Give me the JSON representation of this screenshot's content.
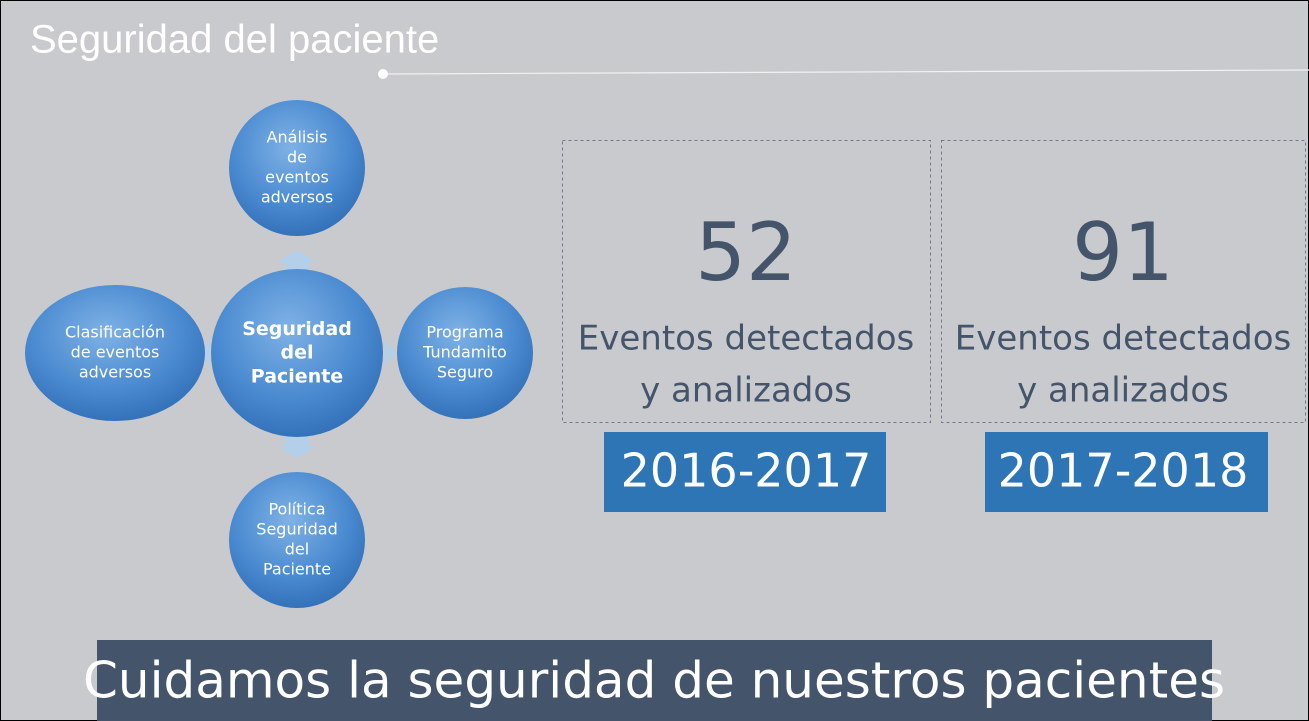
{
  "title": "Seguridad del paciente",
  "diagram": {
    "center": {
      "lines": [
        "Seguridad",
        "del",
        "Paciente"
      ]
    },
    "nodes": [
      {
        "lines": [
          "Análisis",
          "de",
          "eventos",
          "adversos"
        ]
      },
      {
        "lines": [
          "Programa",
          "Tundamito",
          "Seguro"
        ]
      },
      {
        "lines": [
          "Política",
          "Seguridad",
          "del",
          "Paciente"
        ]
      },
      {
        "lines": [
          "Clasificación",
          "de eventos",
          "adversos"
        ]
      }
    ]
  },
  "stats": [
    {
      "number": 52,
      "lines": [
        "Eventos detectados",
        "y analizados"
      ],
      "period": "2016-2017"
    },
    {
      "number": 91,
      "lines": [
        "Eventos detectados",
        "y analizados"
      ],
      "period": "2017-2018"
    }
  ],
  "banner": "Cuidamos la seguridad de nuestros pacientes"
}
